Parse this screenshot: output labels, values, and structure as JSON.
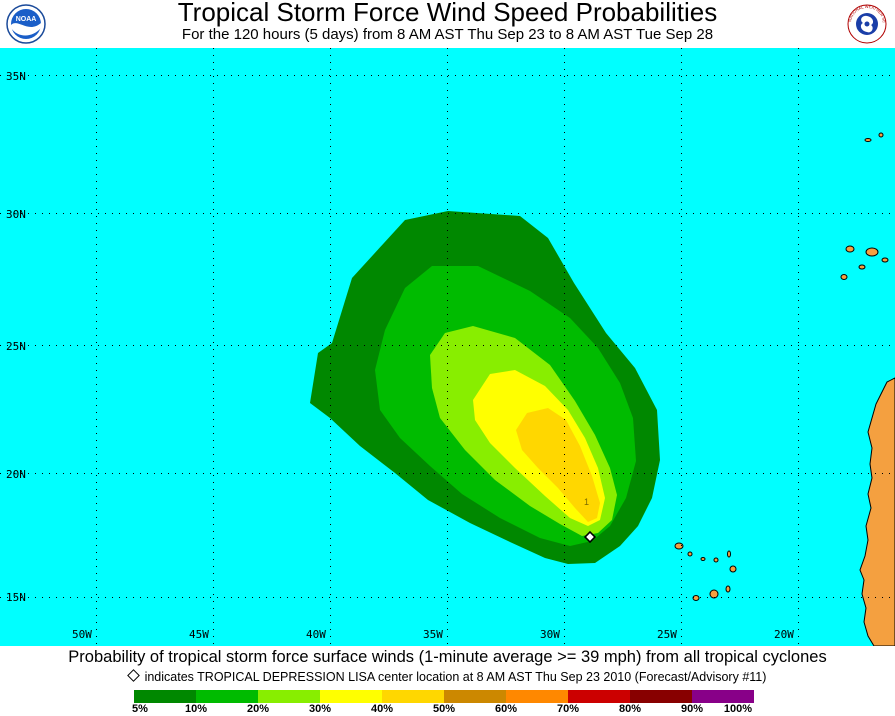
{
  "header": {
    "title": "Tropical Storm Force Wind Speed Probabilities",
    "subtitle": "For the 120 hours (5 days) from 8 AM AST Thu Sep 23 to 8 AM AST Tue Sep 28",
    "left_logo": "NOAA",
    "right_logo": "NATIONAL WEATHER SERVICE"
  },
  "map": {
    "latitude_labels": [
      "35N",
      "30N",
      "25N",
      "20N",
      "15N"
    ],
    "longitude_labels": [
      "50W",
      "45W",
      "40W",
      "35W",
      "30W",
      "25W",
      "20W"
    ],
    "storm_marker_label": "1",
    "ocean_color": "#00ffff",
    "land_color": "#f4a040"
  },
  "footer": {
    "caption": "Probability of tropical storm force surface winds (1-minute average >= 39 mph) from all tropical cyclones",
    "note": "indicates TROPICAL DEPRESSION LISA center location at 8 AM AST Thu Sep 23 2010 (Forecast/Advisory #11)"
  },
  "legend": {
    "labels": [
      "5%",
      "10%",
      "20%",
      "30%",
      "40%",
      "50%",
      "60%",
      "70%",
      "80%",
      "90%",
      "100%"
    ],
    "colors": [
      "#008800",
      "#00bb00",
      "#88ee00",
      "#ffff00",
      "#ffd700",
      "#cc8800",
      "#ff8800",
      "#cc0000",
      "#880000",
      "#880088"
    ]
  }
}
